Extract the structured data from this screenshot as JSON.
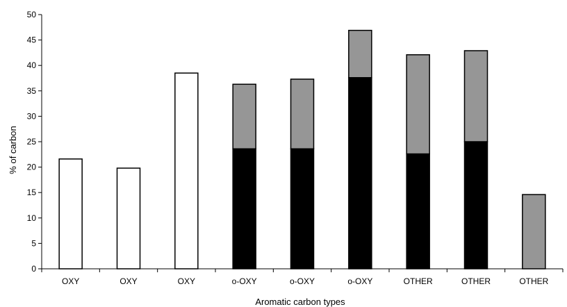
{
  "chart_data": {
    "type": "bar",
    "stacked": true,
    "title": "",
    "xlabel": "Aromatic carbon types",
    "ylabel": "% of carbon",
    "ylim": [
      0,
      50
    ],
    "yticks": [
      0,
      5,
      10,
      15,
      20,
      25,
      30,
      35,
      40,
      45,
      50
    ],
    "grid": false,
    "legend": "none",
    "categories": [
      "OXY",
      "OXY",
      "OXY",
      "o-OXY",
      "o-OXY",
      "o-OXY",
      "OTHER",
      "OTHER",
      "OTHER"
    ],
    "series": [
      {
        "values": [
          21.6,
          19.8,
          38.5,
          0,
          0,
          0,
          0,
          0,
          0
        ],
        "color": "#ffffff"
      },
      {
        "values": [
          0,
          0,
          0,
          23.6,
          23.6,
          37.6,
          22.6,
          25.0,
          0
        ],
        "color": "#000000"
      },
      {
        "values": [
          0,
          0,
          0,
          12.7,
          13.7,
          9.3,
          19.5,
          17.9,
          14.6
        ],
        "color": "#969696"
      }
    ]
  }
}
